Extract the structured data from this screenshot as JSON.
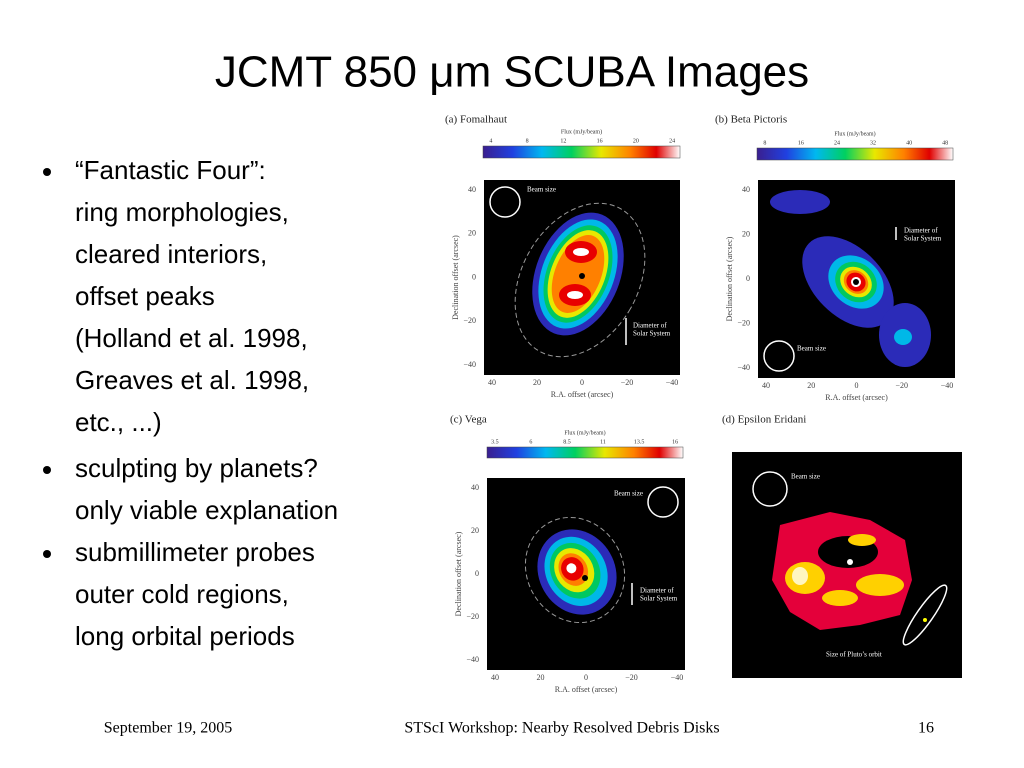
{
  "title": "JCMT 850 μm SCUBA Images",
  "bullets": [
    {
      "lines": [
        "“Fantastic Four”:",
        "ring morphologies,",
        "cleared  interiors,",
        "offset  peaks",
        "(Holland et al. 1998,",
        "Greaves et al. 1998,",
        "etc., ...)"
      ]
    },
    {
      "lines": [
        "sculpting by planets?",
        "only viable explanation"
      ]
    },
    {
      "lines": [
        "submillimeter probes",
        "outer cold regions,",
        "long orbital periods"
      ]
    }
  ],
  "panels": [
    {
      "label": "(a) Fomalhaut",
      "colorbar_title": "Flux (mJy/beam)",
      "colorbar_ticks": [
        "4",
        "8",
        "12",
        "16",
        "20",
        "24"
      ],
      "y_label": "Declination offset (arcsec)",
      "y_ticks": [
        "40",
        "20",
        "0",
        "−20",
        "−40"
      ],
      "x_label": "R.A. offset (arcsec)",
      "x_ticks": [
        "40",
        "20",
        "0",
        "−20",
        "−40"
      ],
      "annotations": [
        [
          "Beam size"
        ],
        [
          "Diameter of",
          "Solar System"
        ]
      ]
    },
    {
      "label": "(b) Beta Pictoris",
      "colorbar_title": "Flux (mJy/beam)",
      "colorbar_ticks": [
        "8",
        "16",
        "24",
        "32",
        "40",
        "48"
      ],
      "y_label": "Declination offset (arcsec)",
      "y_ticks": [
        "40",
        "20",
        "0",
        "−20",
        "−40"
      ],
      "x_label": "R.A. offset (arcsec)",
      "x_ticks": [
        "40",
        "20",
        "0",
        "−20",
        "−40"
      ],
      "annotations": [
        [
          "Diameter of",
          "Solar System"
        ],
        [
          "Beam size"
        ]
      ]
    },
    {
      "label": "(c) Vega",
      "colorbar_title": "Flux (mJy/beam)",
      "colorbar_ticks": [
        "3.5",
        "6",
        "8.5",
        "11",
        "13.5",
        "16"
      ],
      "y_label": "Declination offset (arcsec)",
      "y_ticks": [
        "40",
        "20",
        "0",
        "−20",
        "−40"
      ],
      "x_label": "R.A. offset (arcsec)",
      "x_ticks": [
        "40",
        "20",
        "0",
        "−20",
        "−40"
      ],
      "annotations": [
        [
          "Beam size"
        ],
        [
          "Diameter of",
          "Solar System"
        ]
      ]
    },
    {
      "label": "(d) Epsilon Eridani",
      "annotations": [
        [
          "Beam size"
        ],
        [
          "Size of Pluto’s orbit"
        ]
      ]
    }
  ],
  "footer": {
    "date": "September 19, 2005",
    "center": "STScI Workshop: Nearby Resolved Debris Disks",
    "page": "16"
  }
}
